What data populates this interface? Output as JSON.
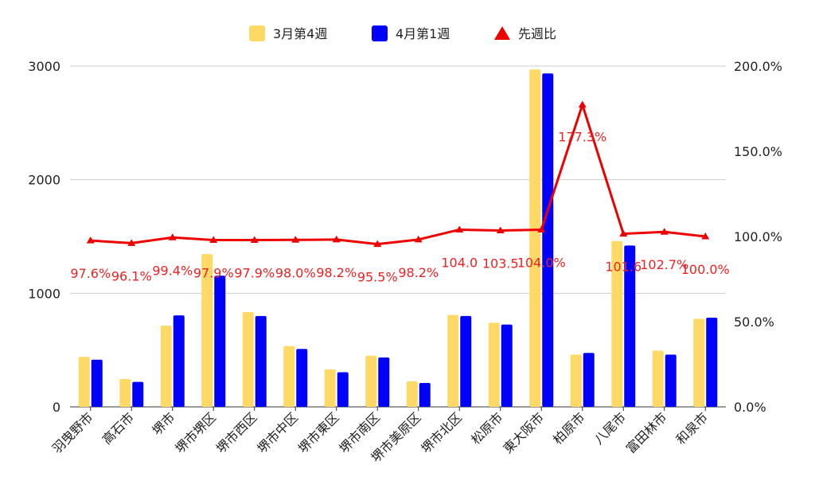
{
  "chart_data": {
    "type": "bar",
    "categories": [
      "羽曳野市",
      "高石市",
      "堺市",
      "堺市堺区",
      "堺市西区",
      "堺市中区",
      "堺市東区",
      "堺市南区",
      "堺市美原区",
      "堺市北区",
      "松原市",
      "東大阪市",
      "柏原市",
      "八尾市",
      "富田林市",
      "和泉市"
    ],
    "series": [
      {
        "name": "3月第4週",
        "type": "bar",
        "axis": "left",
        "color": "#FFD966",
        "values": [
          440,
          245,
          715,
          1345,
          835,
          535,
          330,
          450,
          225,
          810,
          740,
          2970,
          460,
          1460,
          495,
          775
        ]
      },
      {
        "name": "4月第1週",
        "type": "bar",
        "axis": "left",
        "color": "#0000FF",
        "values": [
          415,
          220,
          805,
          1155,
          800,
          510,
          305,
          435,
          210,
          800,
          725,
          2935,
          475,
          1420,
          460,
          785
        ]
      },
      {
        "name": "先週比",
        "type": "line",
        "axis": "right",
        "color": "#EE0000",
        "values": [
          97.6,
          96.1,
          99.4,
          97.9,
          97.9,
          98.0,
          98.2,
          95.5,
          98.2,
          104.0,
          103.5,
          104.0,
          177.3,
          101.6,
          102.7,
          100.0
        ],
        "labels": [
          "97.6%",
          "96.1%",
          "99.4%",
          "97.9%",
          "97.9%",
          "98.0%",
          "98.2%",
          "95.5%",
          "98.2%",
          "104.0",
          "103.5",
          "104.0%",
          "177.3%",
          "101.6",
          "102.7%",
          "100.0%"
        ]
      }
    ],
    "yaxis_left": {
      "min": 0,
      "max": 3000,
      "ticks": [
        "0",
        "1000",
        "2000",
        "3000"
      ]
    },
    "yaxis_right": {
      "min": 0,
      "max": 200,
      "ticks": [
        "0.0%",
        "50.0%",
        "100.0%",
        "150.0%",
        "200.0%"
      ]
    },
    "legend_position": "top",
    "grid": true
  }
}
